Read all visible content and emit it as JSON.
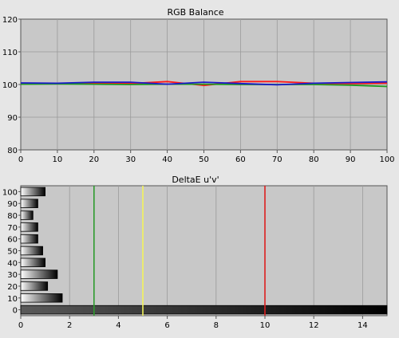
{
  "chart_data": [
    {
      "type": "line",
      "title": "RGB Balance",
      "xlabel": "",
      "ylabel": "",
      "xlim": [
        0,
        100
      ],
      "ylim": [
        80,
        120
      ],
      "x_ticks": [
        "0",
        "10",
        "20",
        "30",
        "40",
        "50",
        "60",
        "70",
        "80",
        "90",
        "100"
      ],
      "y_ticks": [
        "80",
        "90",
        "100",
        "110",
        "120"
      ],
      "grid": true,
      "x": [
        0,
        10,
        20,
        30,
        40,
        50,
        60,
        70,
        80,
        90,
        100
      ],
      "series": [
        {
          "color": "#ff1a1a",
          "values": [
            100.2,
            100.3,
            100.4,
            100.3,
            100.9,
            99.7,
            100.9,
            100.9,
            100.4,
            100.3,
            100.4
          ]
        },
        {
          "color": "#1f9a1f",
          "values": [
            100.1,
            100.2,
            100.1,
            100.0,
            100.1,
            100.1,
            100.0,
            100.0,
            100.0,
            99.8,
            99.4
          ]
        },
        {
          "color": "#1a1acc",
          "values": [
            100.5,
            100.4,
            100.7,
            100.7,
            100.1,
            100.7,
            100.3,
            99.9,
            100.4,
            100.6,
            100.8
          ]
        }
      ]
    },
    {
      "type": "bar",
      "orientation": "horizontal",
      "title": "DeltaE u'v'",
      "xlabel": "",
      "ylabel": "",
      "xlim": [
        0,
        15
      ],
      "x_ticks": [
        "0",
        "2",
        "4",
        "6",
        "8",
        "10",
        "12",
        "14"
      ],
      "grid": true,
      "categories": [
        "100",
        "90",
        "80",
        "70",
        "60",
        "50",
        "40",
        "30",
        "20",
        "10",
        "0"
      ],
      "values": [
        1.0,
        0.7,
        0.5,
        0.7,
        0.7,
        0.9,
        1.0,
        1.5,
        1.1,
        1.7,
        15.0
      ],
      "reference_lines": [
        {
          "x": 3,
          "color": "#2e9b2e"
        },
        {
          "x": 5,
          "color": "#f2f25a"
        },
        {
          "x": 10,
          "color": "#dd1f1f"
        }
      ]
    }
  ]
}
